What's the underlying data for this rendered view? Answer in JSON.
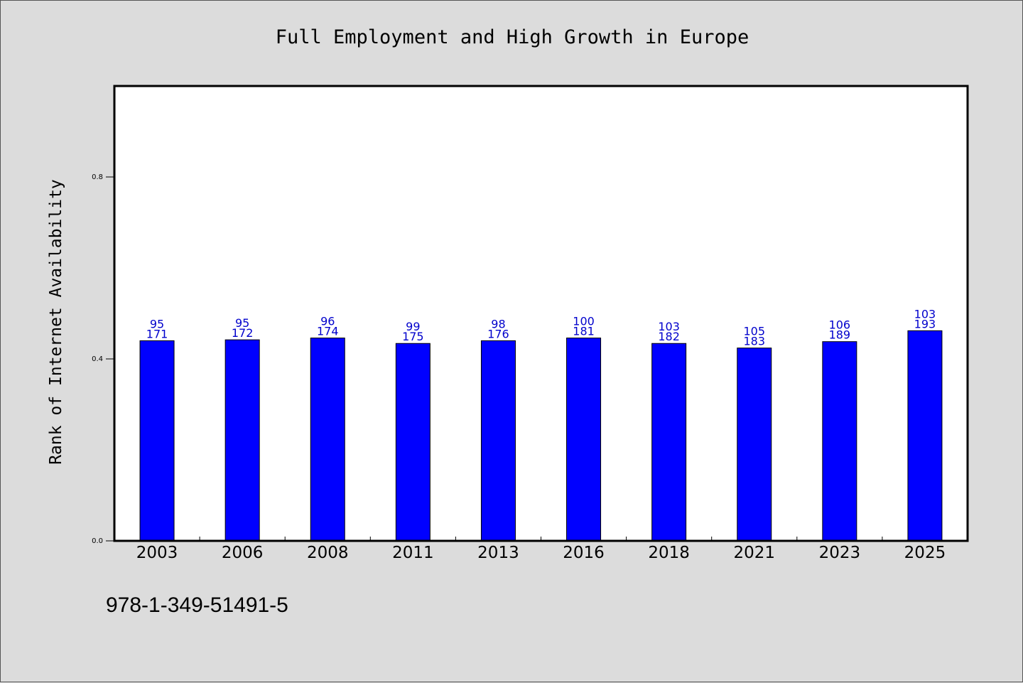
{
  "title": "Full Employment and High Growth in Europe",
  "footnote": "978-1-349-51491-5",
  "colors": {
    "bar": "#0000ff",
    "label": "#0000cc",
    "plot_bg": "#ffffff",
    "page_bg": "#dcdcdc"
  },
  "chart_data": {
    "type": "bar",
    "title": "Full Employment and High Growth in Europe",
    "xlabel": "",
    "ylabel": "Rank of Internet Availability",
    "ylim": [
      0,
      1
    ],
    "yticks": [
      "0.0",
      "0.4",
      "0.8"
    ],
    "grid": false,
    "categories": [
      "2003",
      "2006",
      "2008",
      "2011",
      "2013",
      "2016",
      "2018",
      "2021",
      "2023",
      "2025"
    ],
    "values": [
      0.44,
      0.442,
      0.446,
      0.434,
      0.44,
      0.446,
      0.434,
      0.424,
      0.438,
      0.462
    ],
    "labels_top": [
      "95",
      "95",
      "96",
      "99",
      "98",
      "100",
      "103",
      "105",
      "106",
      "103"
    ],
    "labels_bottom": [
      "171",
      "172",
      "174",
      "175",
      "176",
      "181",
      "182",
      "183",
      "189",
      "193"
    ]
  }
}
